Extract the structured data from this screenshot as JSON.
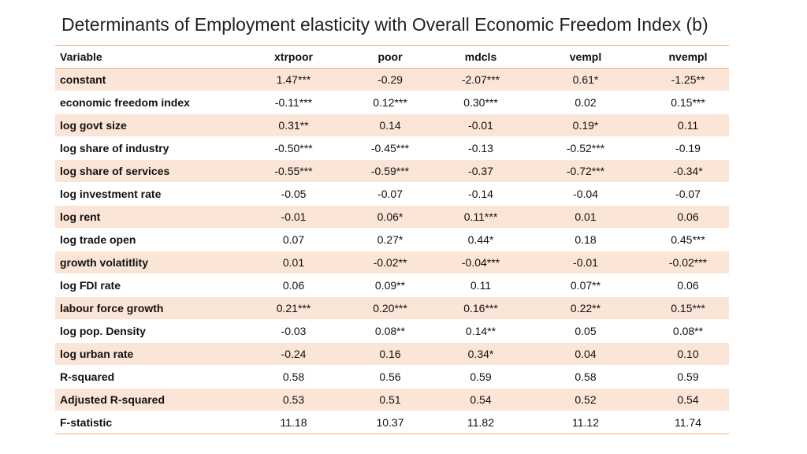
{
  "title": "Determinants of Employment elasticity with Overall Economic Freedom Index (b)",
  "table": {
    "header": [
      "Variable",
      "xtrpoor",
      "poor",
      "mdcls",
      "vempl",
      "nvempl"
    ],
    "rows": [
      [
        "constant",
        "1.47***",
        "-0.29",
        "-2.07***",
        "0.61*",
        "-1.25**"
      ],
      [
        "economic freedom index",
        "-0.11***",
        "0.12***",
        "0.30***",
        "0.02",
        "0.15***"
      ],
      [
        "log govt size",
        "0.31**",
        "0.14",
        "-0.01",
        "0.19*",
        "0.11"
      ],
      [
        "log share of industry",
        "-0.50***",
        "-0.45***",
        "-0.13",
        "-0.52***",
        "-0.19"
      ],
      [
        "log share of services",
        "-0.55***",
        "-0.59***",
        "-0.37",
        "-0.72***",
        "-0.34*"
      ],
      [
        "log investment rate",
        "-0.05",
        "-0.07",
        "-0.14",
        "-0.04",
        "-0.07"
      ],
      [
        "log rent",
        "-0.01",
        "0.06*",
        "0.11***",
        "0.01",
        "0.06"
      ],
      [
        "log trade open",
        "0.07",
        "0.27*",
        "0.44*",
        "0.18",
        "0.45***"
      ],
      [
        "growth volatitlity",
        "0.01",
        "-0.02**",
        "-0.04***",
        "-0.01",
        "-0.02***"
      ],
      [
        "log FDI rate",
        "0.06",
        "0.09**",
        "0.11",
        "0.07**",
        "0.06"
      ],
      [
        "labour force growth",
        "0.21***",
        "0.20***",
        "0.16***",
        "0.22**",
        "0.15***"
      ],
      [
        "log pop. Density",
        "-0.03",
        "0.08**",
        "0.14**",
        "0.05",
        "0.08**"
      ],
      [
        "log urban rate",
        "-0.24",
        "0.16",
        "0.34*",
        "0.04",
        "0.10"
      ],
      [
        "R-squared",
        "0.58",
        "0.56",
        "0.59",
        "0.58",
        "0.59"
      ],
      [
        "Adjusted R-squared",
        "0.53",
        "0.51",
        "0.54",
        "0.52",
        "0.54"
      ],
      [
        "F-statistic",
        "11.18",
        "10.37",
        "11.82",
        "11.12",
        "11.74"
      ]
    ]
  }
}
